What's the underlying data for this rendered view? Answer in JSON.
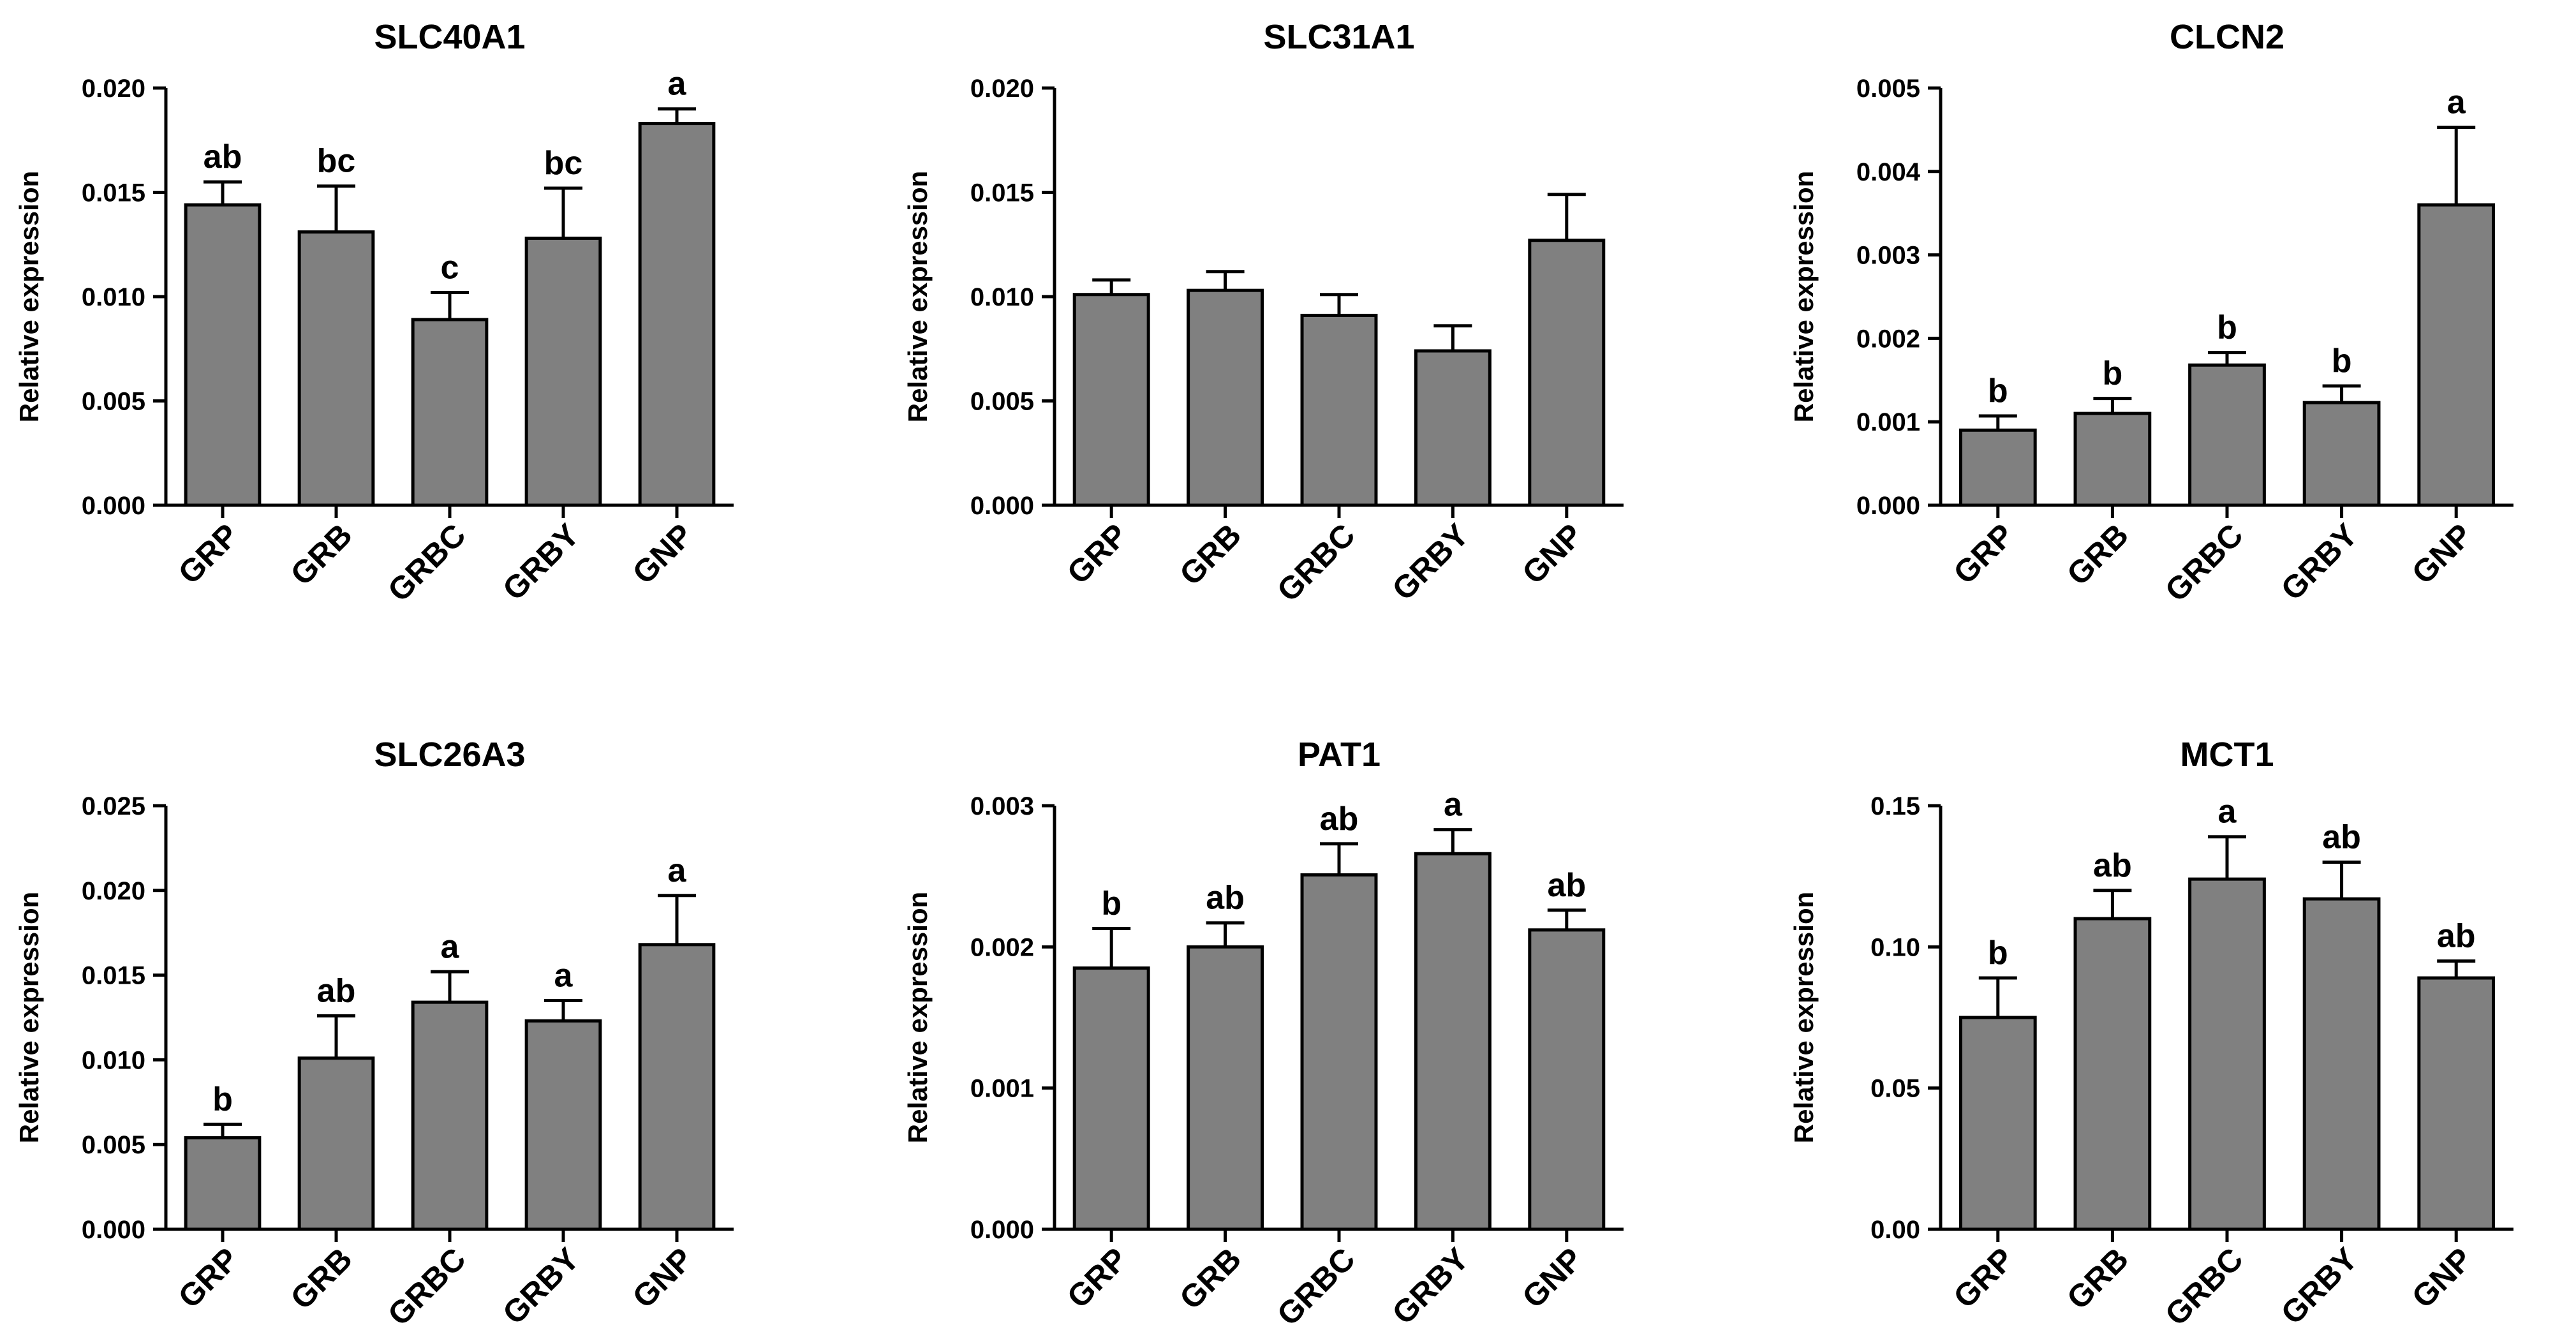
{
  "colors": {
    "bar": "#808080",
    "stroke": "#000000",
    "background": "#ffffff"
  },
  "chart_data": [
    {
      "type": "bar",
      "title": "SLC40A1",
      "xlabel": "",
      "ylabel": "Relative expression",
      "categories": [
        "GRP",
        "GRB",
        "GRBC",
        "GRBY",
        "GNP"
      ],
      "values": [
        0.0144,
        0.0131,
        0.0089,
        0.0128,
        0.0183
      ],
      "errors": [
        0.0011,
        0.0022,
        0.0013,
        0.0024,
        0.0007
      ],
      "significance": [
        "ab",
        "bc",
        "c",
        "bc",
        "a"
      ],
      "ylim": [
        0,
        0.02
      ],
      "yticks": [
        "0.000",
        "0.005",
        "0.010",
        "0.015",
        "0.020"
      ]
    },
    {
      "type": "bar",
      "title": "SLC31A1",
      "xlabel": "",
      "ylabel": "Relative expression",
      "categories": [
        "GRP",
        "GRB",
        "GRBC",
        "GRBY",
        "GNP"
      ],
      "values": [
        0.0101,
        0.0103,
        0.0091,
        0.0074,
        0.0127
      ],
      "errors": [
        0.0007,
        0.0009,
        0.001,
        0.0012,
        0.0022
      ],
      "significance": [
        "",
        "",
        "",
        "",
        ""
      ],
      "ylim": [
        0,
        0.02
      ],
      "yticks": [
        "0.000",
        "0.005",
        "0.010",
        "0.015",
        "0.020"
      ]
    },
    {
      "type": "bar",
      "title": "CLCN2",
      "xlabel": "",
      "ylabel": "Relative expression",
      "categories": [
        "GRP",
        "GRB",
        "GRBC",
        "GRBY",
        "GNP"
      ],
      "values": [
        0.0009,
        0.0011,
        0.00168,
        0.00123,
        0.0036
      ],
      "errors": [
        0.00017,
        0.00018,
        0.00015,
        0.0002,
        0.00093
      ],
      "significance": [
        "b",
        "b",
        "b",
        "b",
        "a"
      ],
      "ylim": [
        0,
        0.005
      ],
      "yticks": [
        "0.000",
        "0.001",
        "0.002",
        "0.003",
        "0.004",
        "0.005"
      ]
    },
    {
      "type": "bar",
      "title": "SLC26A3",
      "xlabel": "",
      "ylabel": "Relative expression",
      "categories": [
        "GRP",
        "GRB",
        "GRBC",
        "GRBY",
        "GNP"
      ],
      "values": [
        0.0054,
        0.0101,
        0.0134,
        0.0123,
        0.0168
      ],
      "errors": [
        0.0008,
        0.0025,
        0.0018,
        0.0012,
        0.0029
      ],
      "significance": [
        "b",
        "ab",
        "a",
        "a",
        "a"
      ],
      "ylim": [
        0,
        0.025
      ],
      "yticks": [
        "0.000",
        "0.005",
        "0.010",
        "0.015",
        "0.020",
        "0.025"
      ]
    },
    {
      "type": "bar",
      "title": "PAT1",
      "xlabel": "",
      "ylabel": "Relative expression",
      "categories": [
        "GRP",
        "GRB",
        "GRBC",
        "GRBY",
        "GNP"
      ],
      "values": [
        0.00185,
        0.002,
        0.00251,
        0.00266,
        0.00212
      ],
      "errors": [
        0.00028,
        0.00017,
        0.00022,
        0.00017,
        0.00014
      ],
      "significance": [
        "b",
        "ab",
        "ab",
        "a",
        "ab"
      ],
      "ylim": [
        0,
        0.003
      ],
      "yticks": [
        "0.000",
        "0.001",
        "0.002",
        "0.003"
      ]
    },
    {
      "type": "bar",
      "title": "MCT1",
      "xlabel": "",
      "ylabel": "Relative expression",
      "categories": [
        "GRP",
        "GRB",
        "GRBC",
        "GRBY",
        "GNP"
      ],
      "values": [
        0.075,
        0.11,
        0.124,
        0.117,
        0.089
      ],
      "errors": [
        0.014,
        0.01,
        0.015,
        0.013,
        0.006
      ],
      "significance": [
        "b",
        "ab",
        "a",
        "ab",
        "ab"
      ],
      "ylim": [
        0,
        0.15
      ],
      "yticks": [
        "0.00",
        "0.05",
        "0.10",
        "0.15"
      ]
    }
  ]
}
